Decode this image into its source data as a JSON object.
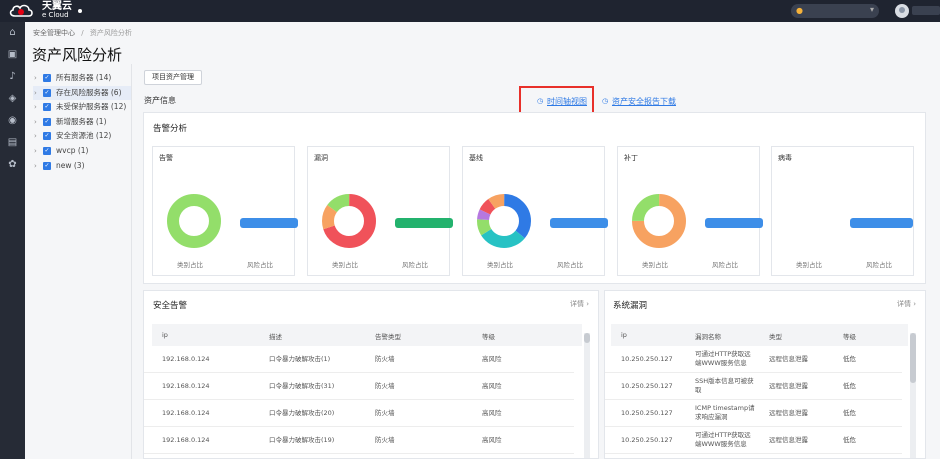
{
  "brand": {
    "name_cn": "天翼云",
    "name_en": "e Cloud",
    "accent": "#2f7ae5",
    "logo_red": "#e60012"
  },
  "breadcrumb": [
    "安全管理中心",
    "资产风险分析"
  ],
  "page_title": "资产风险分析",
  "tree": [
    {
      "label": "所有服务器 (14)"
    },
    {
      "label": "存在风险服务器 (6)"
    },
    {
      "label": "未受保护服务器 (12)"
    },
    {
      "label": "新增服务器 (1)"
    },
    {
      "label": "安全资源池 (12)"
    },
    {
      "label": "wvcp (1)"
    },
    {
      "label": "new (3)"
    }
  ],
  "buttons": {
    "origin_asset": "项目资产管理"
  },
  "asset_info": "资产信息",
  "links": {
    "timeline": "时间轴视图",
    "report": "资产安全报告下载"
  },
  "alert_analysis": {
    "title": "告警分析",
    "left_label": "类别占比",
    "right_label": "风险占比",
    "cards": [
      {
        "title": "告警",
        "slices": [
          {
            "color": "#93de6a",
            "value": 100
          }
        ],
        "bar_color": "#3d8ee8"
      },
      {
        "title": "漏洞",
        "slices": [
          {
            "color": "#f0525a",
            "value": 70
          },
          {
            "color": "#f7a261",
            "value": 15
          },
          {
            "color": "#93de6a",
            "value": 15
          }
        ],
        "bar_color": "#23b26d"
      },
      {
        "title": "基线",
        "slices": [
          {
            "color": "#2f7ae5",
            "value": 36
          },
          {
            "color": "#27c2c4",
            "value": 30
          },
          {
            "color": "#93de6a",
            "value": 10
          },
          {
            "color": "#b678e0",
            "value": 6
          },
          {
            "color": "#f0525a",
            "value": 8
          },
          {
            "color": "#f7a261",
            "value": 10
          }
        ],
        "bar_color": "#3d8ee8"
      },
      {
        "title": "补丁",
        "slices": [
          {
            "color": "#f7a261",
            "value": 75
          },
          {
            "color": "#93de6a",
            "value": 25
          }
        ],
        "bar_color": "#3d8ee8"
      },
      {
        "title": "病毒",
        "slices": [],
        "bar_color": "#3d8ee8"
      }
    ]
  },
  "security_alerts": {
    "title": "安全告警",
    "detail": "详情",
    "columns": [
      "ip",
      "描述",
      "告警类型",
      "等级"
    ],
    "rows": [
      [
        "192.168.0.124",
        "口令暴力破解攻击(1)",
        "防火墙",
        "高风险"
      ],
      [
        "192.168.0.124",
        "口令暴力破解攻击(31)",
        "防火墙",
        "高风险"
      ],
      [
        "192.168.0.124",
        "口令暴力破解攻击(20)",
        "防火墙",
        "高风险"
      ],
      [
        "192.168.0.124",
        "口令暴力破解攻击(19)",
        "防火墙",
        "高风险"
      ]
    ]
  },
  "system_vulns": {
    "title": "系统漏洞",
    "detail": "详情",
    "columns": [
      "ip",
      "漏洞名称",
      "类型",
      "等级"
    ],
    "rows": [
      [
        "10.250.250.127",
        "可通过HTTP获取远端WWW服务信息",
        "远程信息泄露",
        "低危"
      ],
      [
        "10.250.250.127",
        "SSH版本信息可被获取",
        "远程信息泄露",
        "低危"
      ],
      [
        "10.250.250.127",
        "ICMP timestamp请求响应漏洞",
        "远程信息泄露",
        "低危"
      ],
      [
        "10.250.250.127",
        "可通过HTTP获取远端WWW服务信息",
        "远程信息泄露",
        "低危"
      ]
    ]
  }
}
